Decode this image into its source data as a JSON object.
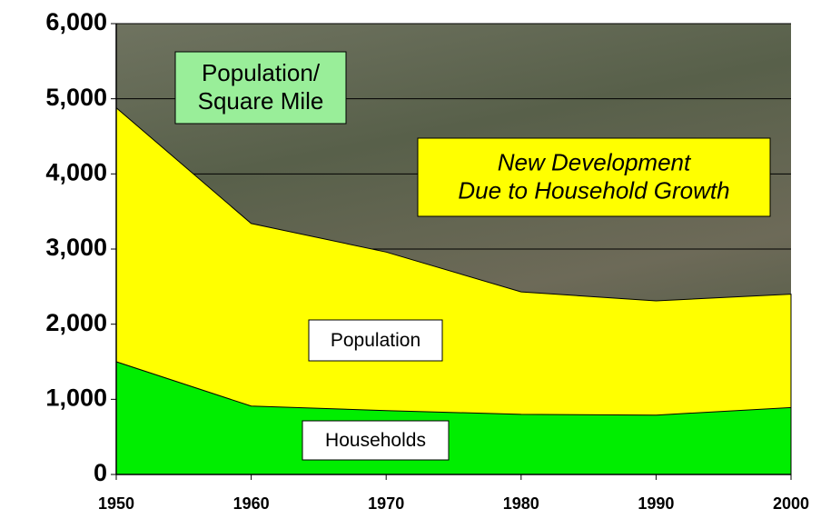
{
  "chart_data": {
    "type": "area",
    "x": [
      1950,
      1960,
      1970,
      1980,
      1990,
      2000
    ],
    "series": [
      {
        "name": "Population",
        "color": "#ffff00",
        "values": [
          4880,
          3340,
          2960,
          2430,
          2310,
          2400
        ]
      },
      {
        "name": "Households",
        "color": "#00ee00",
        "values": [
          1500,
          910,
          850,
          800,
          790,
          890
        ]
      }
    ],
    "xlim": [
      1950,
      2000
    ],
    "xticks": [
      1950,
      1960,
      1970,
      1980,
      1990,
      2000
    ],
    "ylim": [
      0,
      6000
    ],
    "yticks": [
      0,
      {
        "value": 1000,
        "label": "1,000"
      },
      {
        "value": 2000,
        "label": "2,000"
      },
      {
        "value": 3000,
        "label": "3,000"
      },
      {
        "value": 4000,
        "label": "4,000"
      },
      {
        "value": 5000,
        "label": "5,000"
      },
      {
        "value": 6000,
        "label": "6,000"
      }
    ],
    "grid": true,
    "annotations": [
      {
        "text": [
          "Population/",
          "Square Mile"
        ],
        "color": "#99ee99"
      },
      {
        "text": [
          "New Development",
          "Due to Household Growth"
        ],
        "color": "#ffff00"
      }
    ]
  }
}
